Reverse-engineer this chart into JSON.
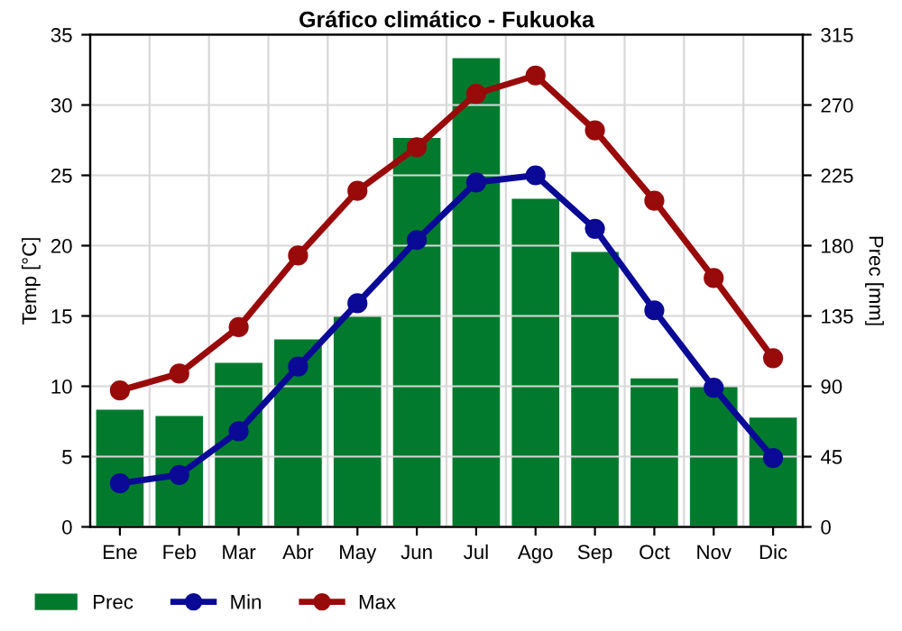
{
  "chart_data": {
    "type": "line",
    "title": "Gráfico climático - Fukuoka",
    "ylabel": "Temp [°C]",
    "y2label": "Prec [mm]",
    "categories": [
      "Ene",
      "Feb",
      "Mar",
      "Abr",
      "May",
      "Jun",
      "Jul",
      "Ago",
      "Sep",
      "Oct",
      "Nov",
      "Dic"
    ],
    "series": [
      {
        "name": "Prec",
        "type": "bar",
        "axis": "y2",
        "color": "#027a2e",
        "values": [
          75,
          71,
          105,
          120,
          135,
          249,
          300,
          210,
          176,
          95,
          90,
          70
        ]
      },
      {
        "name": "Min",
        "color": "#0a0a96",
        "values": [
          3.1,
          3.7,
          6.8,
          11.4,
          15.9,
          20.4,
          24.5,
          25.0,
          21.2,
          15.4,
          9.9,
          4.9
        ]
      },
      {
        "name": "Max",
        "color": "#990a0a",
        "values": [
          9.7,
          10.9,
          14.2,
          19.3,
          23.9,
          27.0,
          30.8,
          32.1,
          28.2,
          23.2,
          17.7,
          12.0
        ]
      }
    ],
    "ylim": [
      0,
      35
    ],
    "yticks": [
      0,
      5,
      10,
      15,
      20,
      25,
      30,
      35
    ],
    "y2lim": [
      0,
      315
    ],
    "y2ticks": [
      0,
      45,
      90,
      135,
      180,
      225,
      270,
      315
    ],
    "grid": true,
    "legend": "bottom",
    "marker": "circle",
    "line_style": "solid"
  }
}
